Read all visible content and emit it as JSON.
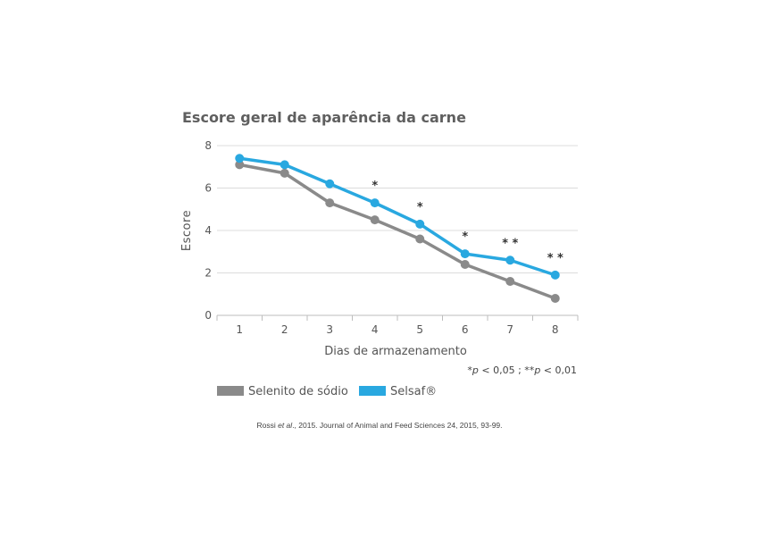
{
  "chart_data": {
    "type": "line",
    "title": "Escore geral de aparência da carne",
    "xlabel": "Dias de armazenamento",
    "ylabel": "Escore",
    "x": [
      1,
      2,
      3,
      4,
      5,
      6,
      7,
      8
    ],
    "ylim": [
      0,
      8
    ],
    "yticks": [
      0,
      2,
      4,
      6,
      8
    ],
    "grid": true,
    "legend_position": "bottom-left",
    "series": [
      {
        "name": "Selenito de sódio",
        "color": "#8a8a8a",
        "values": [
          7.1,
          6.7,
          5.3,
          4.5,
          3.6,
          2.4,
          1.6,
          0.8
        ]
      },
      {
        "name": "Selsaf®",
        "color": "#29a8e0",
        "values": [
          7.4,
          7.1,
          6.2,
          5.3,
          4.3,
          2.9,
          2.6,
          1.9
        ]
      }
    ],
    "annotations": [
      {
        "x": 4,
        "text": "*"
      },
      {
        "x": 5,
        "text": "*"
      },
      {
        "x": 6,
        "text": "*"
      },
      {
        "x": 7,
        "text": "* *"
      },
      {
        "x": 8,
        "text": "* *"
      }
    ],
    "significance_note": {
      "part1": "*",
      "p1": "p",
      "part2": " < 0,05 ; **",
      "p2": "p",
      "part3": " < 0,01"
    },
    "source": {
      "before": "Rossi ",
      "italic": "et al",
      "after": "., 2015. Journal of Animal and Feed Sciences 24, 2015, 93-99."
    }
  }
}
